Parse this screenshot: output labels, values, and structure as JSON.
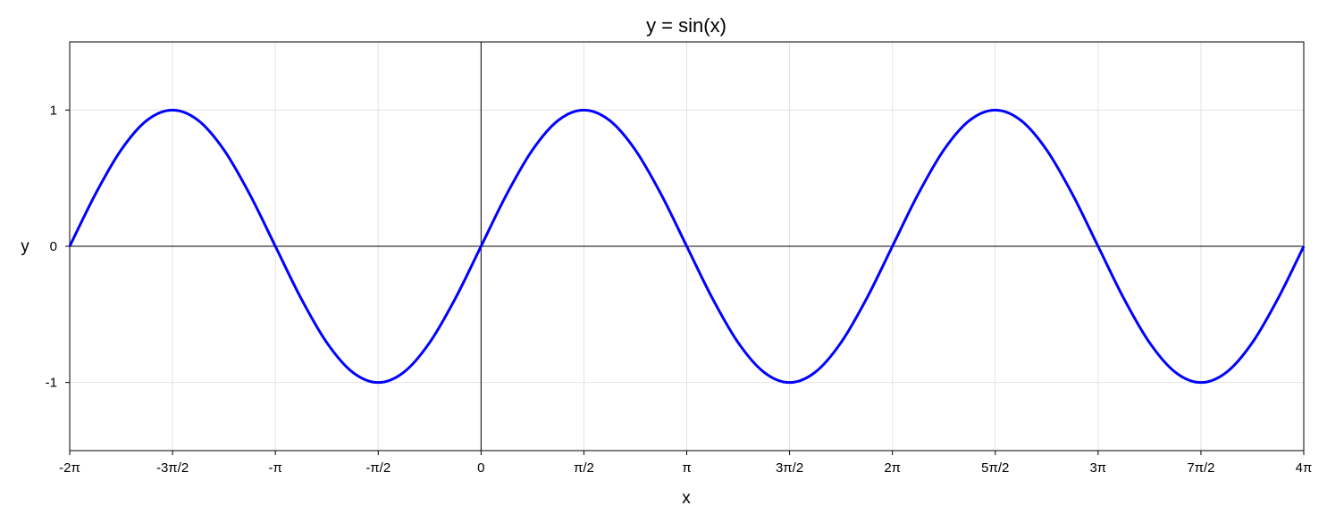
{
  "chart_data": {
    "type": "line",
    "title": "y = sin(x)",
    "x_label": "x",
    "y_label": "y",
    "x": [
      -6.2832,
      -5.8905,
      -5.4978,
      -5.1051,
      -4.7124,
      -4.3197,
      -3.927,
      -3.5343,
      -3.1416,
      -2.7489,
      -2.3562,
      -1.9635,
      -1.5708,
      -1.1781,
      -0.7854,
      -0.3927,
      0,
      0.3927,
      0.7854,
      1.1781,
      1.5708,
      1.9635,
      2.3562,
      2.7489,
      3.1416,
      3.5343,
      3.927,
      4.3197,
      4.7124,
      5.1051,
      5.4978,
      5.8905,
      6.2832,
      6.6759,
      7.0686,
      7.4613,
      7.854,
      8.2467,
      8.6394,
      9.0321,
      9.4248,
      9.8175,
      10.2102,
      10.6029,
      10.9956,
      11.3883,
      11.781,
      12.1737,
      12.5664
    ],
    "series": [
      {
        "color": "#0000ff",
        "values": [
          0,
          0.3827,
          0.7071,
          0.9239,
          1,
          0.9239,
          0.7071,
          0.3827,
          0,
          -0.3827,
          -0.7071,
          -0.9239,
          -1,
          -0.9239,
          -0.7071,
          -0.3827,
          0,
          0.3827,
          0.7071,
          0.9239,
          1,
          0.9239,
          0.7071,
          0.3827,
          0,
          -0.3827,
          -0.7071,
          -0.9239,
          -1,
          -0.9239,
          -0.7071,
          -0.3827,
          0,
          0.3827,
          0.7071,
          0.9239,
          1,
          0.9239,
          0.7071,
          0.3827,
          0,
          -0.3827,
          -0.7071,
          -0.9239,
          -1,
          -0.9239,
          -0.7071,
          -0.3827,
          0
        ]
      }
    ],
    "xlim": [
      -6.2832,
      12.5664
    ],
    "ylim": [
      -1.5,
      1.5
    ],
    "xticks": [
      {
        "value": -6.2832,
        "label": "-2π"
      },
      {
        "value": -4.7124,
        "label": "-3π/2"
      },
      {
        "value": -3.1416,
        "label": "-π"
      },
      {
        "value": -1.5708,
        "label": "-π/2"
      },
      0,
      {
        "value": 1.5708,
        "label": "π/2"
      },
      {
        "value": 3.1416,
        "label": "π"
      },
      {
        "value": 4.7124,
        "label": "3π/2"
      },
      {
        "value": 6.2832,
        "label": "2π"
      },
      {
        "value": 7.854,
        "label": "5π/2"
      },
      {
        "value": 9.4248,
        "label": "3π"
      },
      {
        "value": 10.9956,
        "label": "7π/2"
      },
      {
        "value": 12.5664,
        "label": "4π"
      }
    ],
    "yticks": [
      -1,
      0,
      1
    ],
    "grid": true,
    "zero_lines": true
  }
}
